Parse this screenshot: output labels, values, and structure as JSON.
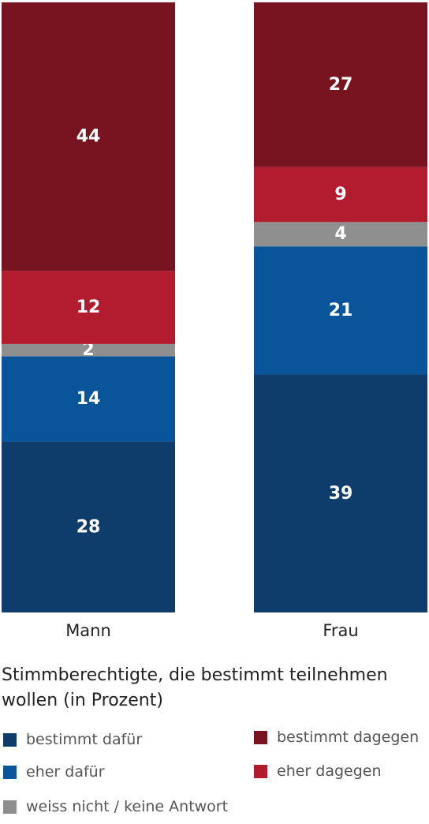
{
  "chart_data": {
    "type": "bar",
    "stacked": true,
    "orientation": "vertical",
    "categories": [
      "Mann",
      "Frau"
    ],
    "series": [
      {
        "name": "bestimmt dafür",
        "color": "#0f3d6b",
        "values": [
          28,
          39
        ]
      },
      {
        "name": "eher dafür",
        "color": "#0a5499",
        "values": [
          14,
          21
        ]
      },
      {
        "name": "weiss nicht / keine Antwort",
        "color": "#8f8f8f",
        "values": [
          2,
          4
        ]
      },
      {
        "name": "eher dagegen",
        "color": "#b31b2e",
        "values": [
          12,
          9
        ]
      },
      {
        "name": "bestimmt dagegen",
        "color": "#77141f",
        "values": [
          44,
          27
        ]
      }
    ],
    "ylim": [
      0,
      100
    ],
    "caption": "Stimmberechtigte, die bestimmt teilnehmen wollen (in Prozent)",
    "legend_placement": "bottom"
  }
}
